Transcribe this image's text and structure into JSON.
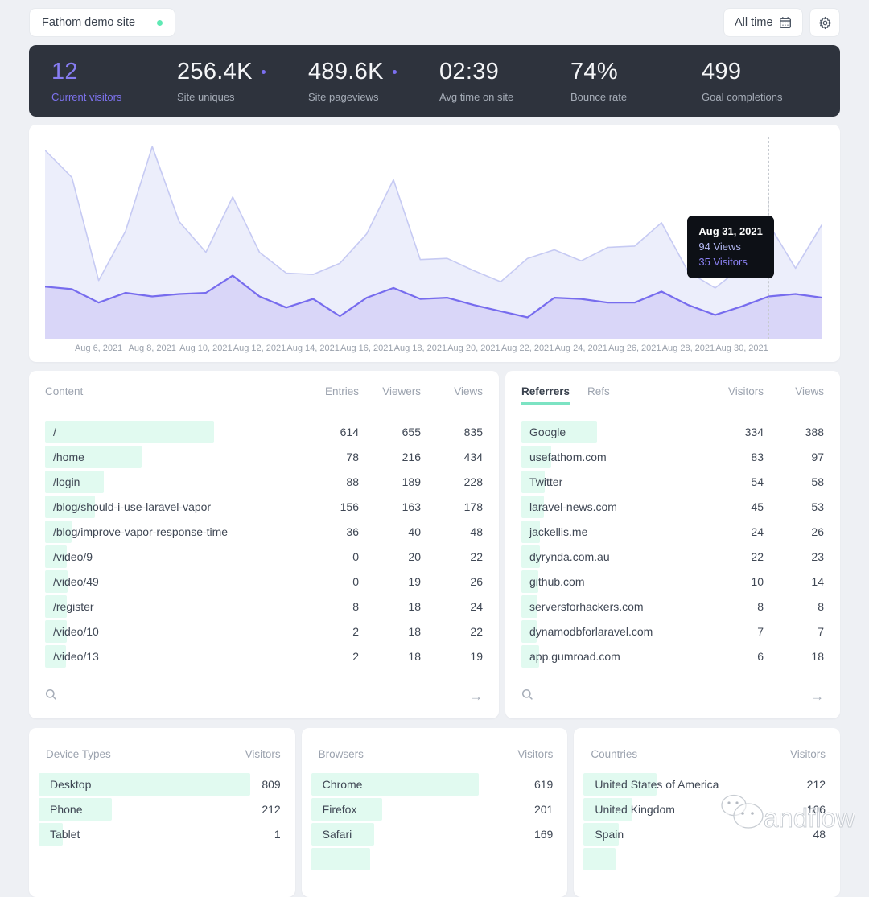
{
  "header": {
    "site_name": "Fathom demo site",
    "date_range_label": "All time"
  },
  "stats": [
    {
      "value": "12",
      "label": "Current visitors",
      "highlight": true,
      "dot": false
    },
    {
      "value": "256.4K",
      "label": "Site uniques",
      "highlight": false,
      "dot": true
    },
    {
      "value": "489.6K",
      "label": "Site pageviews",
      "highlight": false,
      "dot": true
    },
    {
      "value": "02:39",
      "label": "Avg time on site",
      "highlight": false,
      "dot": false
    },
    {
      "value": "74%",
      "label": "Bounce rate",
      "highlight": false,
      "dot": false
    },
    {
      "value": "499",
      "label": "Goal completions",
      "highlight": false,
      "dot": false
    }
  ],
  "chart_data": {
    "type": "area",
    "x": [
      "Aug 4, 2021",
      "Aug 5, 2021",
      "Aug 6, 2021",
      "Aug 7, 2021",
      "Aug 8, 2021",
      "Aug 9, 2021",
      "Aug 10, 2021",
      "Aug 11, 2021",
      "Aug 12, 2021",
      "Aug 13, 2021",
      "Aug 14, 2021",
      "Aug 15, 2021",
      "Aug 16, 2021",
      "Aug 17, 2021",
      "Aug 18, 2021",
      "Aug 19, 2021",
      "Aug 20, 2021",
      "Aug 21, 2021",
      "Aug 22, 2021",
      "Aug 23, 2021",
      "Aug 24, 2021",
      "Aug 25, 2021",
      "Aug 26, 2021",
      "Aug 27, 2021",
      "Aug 28, 2021",
      "Aug 29, 2021",
      "Aug 30, 2021",
      "Aug 31, 2021",
      "Sep 1, 2021",
      "Sep 2, 2021"
    ],
    "series": [
      {
        "name": "Views",
        "values": [
          154,
          132,
          48,
          88,
          157,
          96,
          71,
          116,
          71,
          54,
          53,
          62,
          86,
          130,
          65,
          66,
          56,
          47,
          66,
          73,
          64,
          75,
          76,
          95,
          55,
          42,
          59,
          94,
          58,
          94
        ]
      },
      {
        "name": "Visitors",
        "values": [
          43,
          41,
          30,
          38,
          35,
          37,
          38,
          52,
          35,
          26,
          33,
          19,
          34,
          42,
          33,
          34,
          28,
          23,
          18,
          34,
          33,
          30,
          30,
          39,
          28,
          20,
          27,
          35,
          37,
          34
        ]
      }
    ],
    "x_tick_labels": [
      "Aug 6, 2021",
      "Aug 8, 2021",
      "Aug 10, 2021",
      "Aug 12, 2021",
      "Aug 14, 2021",
      "Aug 16, 2021",
      "Aug 18, 2021",
      "Aug 20, 2021",
      "Aug 22, 2021",
      "Aug 24, 2021",
      "Aug 26, 2021",
      "Aug 28, 2021",
      "Aug 30, 2021"
    ],
    "ylim": [
      0,
      165
    ],
    "grid": false,
    "legend": "none",
    "tooltip": {
      "date": "Aug 31, 2021",
      "views": 94,
      "visitors": 35,
      "views_suffix": "Views",
      "visitors_suffix": "Visitors",
      "index": 27
    },
    "colors": {
      "views_stroke": "#c6caf3",
      "views_fill": "#eceefb",
      "visitors_stroke": "#776cee",
      "visitors_fill": "#d9d6f8"
    }
  },
  "content_panel": {
    "title": "Content",
    "columns": [
      "Entries",
      "Viewers",
      "Views"
    ],
    "rows": [
      {
        "label": "/",
        "entries": 614,
        "viewers": 655,
        "views": 835
      },
      {
        "label": "/home",
        "entries": 78,
        "viewers": 216,
        "views": 434
      },
      {
        "label": "/login",
        "entries": 88,
        "viewers": 189,
        "views": 228
      },
      {
        "label": "/blog/should-i-use-laravel-vapor",
        "entries": 156,
        "viewers": 163,
        "views": 178
      },
      {
        "label": "/blog/improve-vapor-response-time",
        "entries": 36,
        "viewers": 40,
        "views": 48
      },
      {
        "label": "/video/9",
        "entries": 0,
        "viewers": 20,
        "views": 22
      },
      {
        "label": "/video/49",
        "entries": 0,
        "viewers": 19,
        "views": 26
      },
      {
        "label": "/register",
        "entries": 8,
        "viewers": 18,
        "views": 24
      },
      {
        "label": "/video/10",
        "entries": 2,
        "viewers": 18,
        "views": 22
      },
      {
        "label": "/video/13",
        "entries": 2,
        "viewers": 18,
        "views": 19
      }
    ]
  },
  "referrers_panel": {
    "tabs": [
      "Referrers",
      "Refs"
    ],
    "active_tab": "Referrers",
    "columns": [
      "Visitors",
      "Views"
    ],
    "rows": [
      {
        "label": "Google",
        "visitors": 334,
        "views": 388
      },
      {
        "label": "usefathom.com",
        "visitors": 83,
        "views": 97
      },
      {
        "label": "Twitter",
        "visitors": 54,
        "views": 58
      },
      {
        "label": "laravel-news.com",
        "visitors": 45,
        "views": 53
      },
      {
        "label": "jackellis.me",
        "visitors": 24,
        "views": 26
      },
      {
        "label": "dyrynda.com.au",
        "visitors": 22,
        "views": 23
      },
      {
        "label": "github.com",
        "visitors": 10,
        "views": 14
      },
      {
        "label": "serversforhackers.com",
        "visitors": 8,
        "views": 8
      },
      {
        "label": "dynamodbforlaravel.com",
        "visitors": 7,
        "views": 7
      },
      {
        "label": "app.gumroad.com",
        "visitors": 6,
        "views": 18
      }
    ]
  },
  "device_panel": {
    "title": "Device Types",
    "column": "Visitors",
    "rows": [
      {
        "label": "Desktop",
        "visitors": 809
      },
      {
        "label": "Phone",
        "visitors": 212
      },
      {
        "label": "Tablet",
        "visitors": 1
      }
    ],
    "partial_row": false
  },
  "browsers_panel": {
    "title": "Browsers",
    "column": "Visitors",
    "rows": [
      {
        "label": "Chrome",
        "visitors": 619
      },
      {
        "label": "Firefox",
        "visitors": 201
      },
      {
        "label": "Safari",
        "visitors": 169
      }
    ],
    "partial_row": true,
    "partial_bar_width": 73
  },
  "countries_panel": {
    "title": "Countries",
    "column": "Visitors",
    "rows": [
      {
        "label": "United States of America",
        "visitors": 212
      },
      {
        "label": "United Kingdom",
        "visitors": 106
      },
      {
        "label": "Spain",
        "visitors": 48
      }
    ],
    "partial_row": true,
    "partial_bar_width": 40
  },
  "watermark": {
    "text": "andflow"
  }
}
